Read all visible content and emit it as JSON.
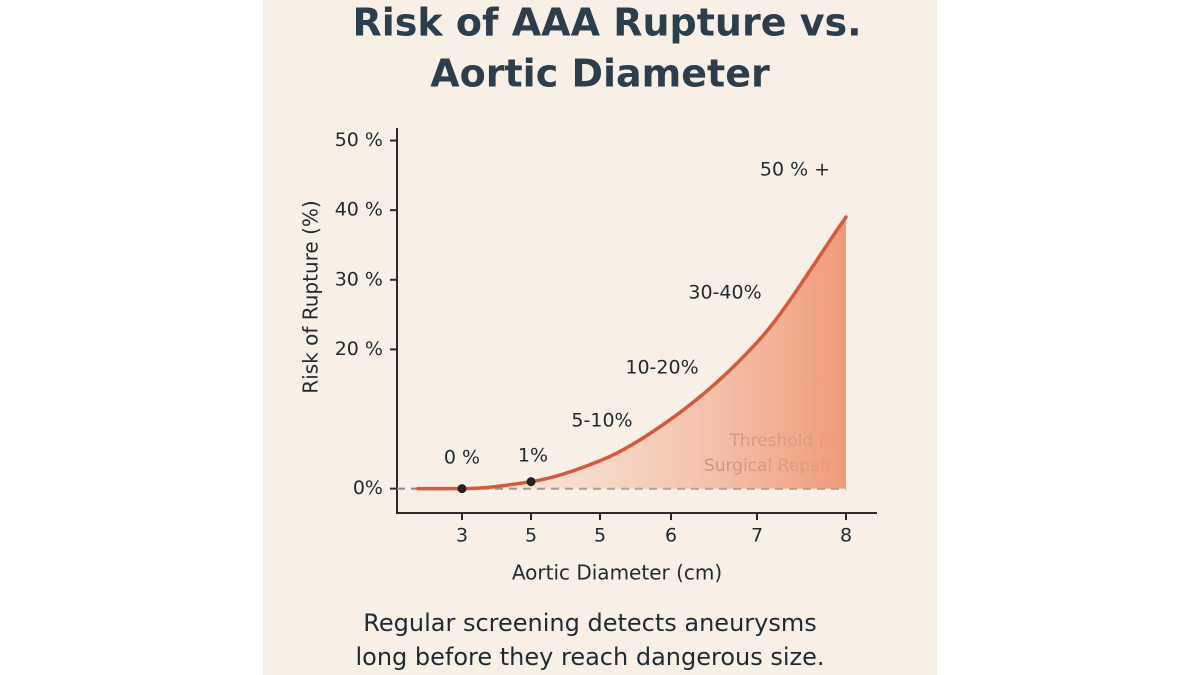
{
  "chart_data": {
    "type": "line",
    "title": [
      "Risk of AAA Rupture vs.",
      "Aortic Diameter"
    ],
    "x_label": "Aortic Diameter (cm)",
    "y_label": "Risk of Rupture (%)",
    "categories": [
      null,
      "3",
      "5",
      "5",
      "6",
      "7",
      "8"
    ],
    "series": [
      {
        "color": "#d5593b",
        "values": [
          0,
          0,
          1,
          4,
          10,
          21,
          39
        ]
      }
    ],
    "markers": [
      1,
      2
    ],
    "annotations": [
      "0 %",
      "1%",
      "5-10%",
      "10-20%",
      "30-40%",
      "50 % +"
    ],
    "threshold": {
      "value": 0,
      "label": [
        "Threshold for",
        "Surgical Repair"
      ]
    },
    "ylim": [
      -3.5,
      51.8
    ],
    "yticks": [
      {
        "value": 0,
        "label": "0%"
      },
      {
        "value": 20,
        "label": "20 %"
      },
      {
        "value": 30,
        "label": "30 %"
      },
      {
        "value": 40,
        "label": "40 %"
      },
      {
        "value": 50,
        "label": "50 %"
      }
    ],
    "footnote": [
      "Regular screening detects aneurysms",
      "long before they reach dangerous size."
    ]
  }
}
